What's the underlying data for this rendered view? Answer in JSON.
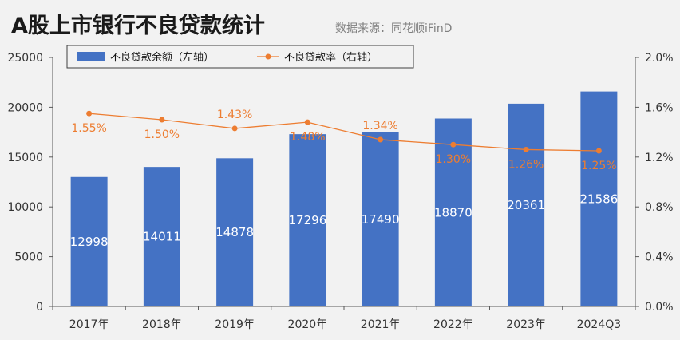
{
  "header": {
    "title": "A股上市银行不良贷款统计",
    "source": "数据来源：同花顺iFinD"
  },
  "chart_data": {
    "type": "bar",
    "categories": [
      "2017年",
      "2018年",
      "2019年",
      "2020年",
      "2021年",
      "2022年",
      "2023年",
      "2024Q3"
    ],
    "series": [
      {
        "name": "不良贷款余额（左轴）",
        "type": "bar",
        "axis": "left",
        "color": "#4472c4",
        "values": [
          12998,
          14011,
          14878,
          17296,
          17490,
          18870,
          20361,
          21586
        ],
        "labels": [
          "12998",
          "14011",
          "14878",
          "17296",
          "17490",
          "18870",
          "20361",
          "21586"
        ]
      },
      {
        "name": "不良贷款率（右轴）",
        "type": "line",
        "axis": "right",
        "color": "#ed7d31",
        "values": [
          1.55,
          1.5,
          1.43,
          1.48,
          1.34,
          1.3,
          1.26,
          1.25
        ],
        "labels": [
          "1.55%",
          "1.50%",
          "1.43%",
          "1.48%",
          "1.34%",
          "1.30%",
          "1.26%",
          "1.25%"
        ]
      }
    ],
    "left_axis": {
      "ylim": [
        0,
        25000
      ],
      "ticks": [
        0,
        5000,
        10000,
        15000,
        20000,
        25000
      ],
      "tick_labels": [
        "0",
        "5000",
        "10000",
        "15000",
        "20000",
        "25000"
      ]
    },
    "right_axis": {
      "ylim": [
        0,
        2.0
      ],
      "ticks": [
        0,
        0.4,
        0.8,
        1.2,
        1.6,
        2.0
      ],
      "tick_labels": [
        "0.0%",
        "0.4%",
        "0.8%",
        "1.2%",
        "1.6%",
        "2.0%"
      ]
    },
    "grid": false,
    "legend_position": "top-left"
  }
}
